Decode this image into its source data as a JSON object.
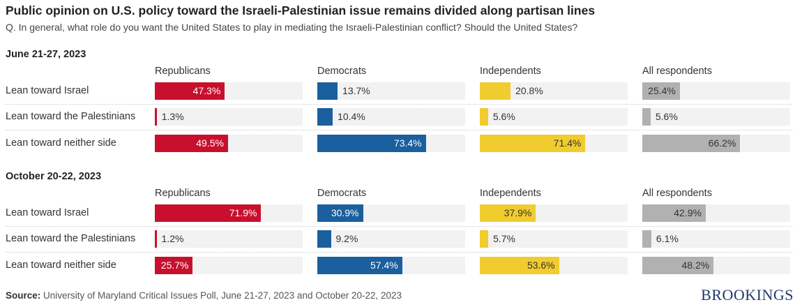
{
  "title": "Public opinion on U.S. policy toward the Israeli-Palestinian issue remains divided along partisan lines",
  "subtitle": "Q. In general, what role do you want the United States to play in mediating the Israeli-Palestinian conflict? Should the United States?",
  "source_label": "Source:",
  "source_text": " University of Maryland Critical Issues Poll, June 21-27, 2023 and October 20-22, 2023",
  "logo": "BROOKINGS",
  "colors": {
    "Republicans": "#c8102e",
    "Democrats": "#1a5f9e",
    "Independents": "#f0cc2e",
    "All respondents": "#b0b1b0",
    "track": "#f2f2f2"
  },
  "chart_data": {
    "type": "bar",
    "title": "Public opinion on U.S. policy toward the Israeli-Palestinian issue remains divided along partisan lines",
    "xlim": [
      0,
      100
    ],
    "panels": [
      "Republicans",
      "Democrats",
      "Independents",
      "All respondents"
    ],
    "categories": [
      "Lean toward Israel",
      "Lean toward the Palestinians",
      "Lean toward neither side"
    ],
    "groups": [
      {
        "name": "June 21-27, 2023",
        "values": [
          [
            47.3,
            13.7,
            20.8,
            25.4
          ],
          [
            1.3,
            10.4,
            5.6,
            5.6
          ],
          [
            49.5,
            73.4,
            71.4,
            66.2
          ]
        ],
        "labels": [
          [
            "47.3%",
            "13.7%",
            "20.8%",
            "25.4%"
          ],
          [
            "1.3%",
            "10.4%",
            "5.6%",
            "5.6%"
          ],
          [
            "49.5%",
            "73.4%",
            "71.4%",
            "66.2%"
          ]
        ]
      },
      {
        "name": "October 20-22, 2023",
        "values": [
          [
            71.9,
            30.9,
            37.9,
            42.9
          ],
          [
            1.2,
            9.2,
            5.7,
            6.1
          ],
          [
            25.7,
            57.4,
            53.6,
            48.2
          ]
        ],
        "labels": [
          [
            "71.9%",
            "30.9%",
            "37.9%",
            "42.9%"
          ],
          [
            "1.2%",
            "9.2%",
            "5.7%",
            "6.1%"
          ],
          [
            "25.7%",
            "57.4%",
            "53.6%",
            "48.2%"
          ]
        ]
      }
    ]
  }
}
